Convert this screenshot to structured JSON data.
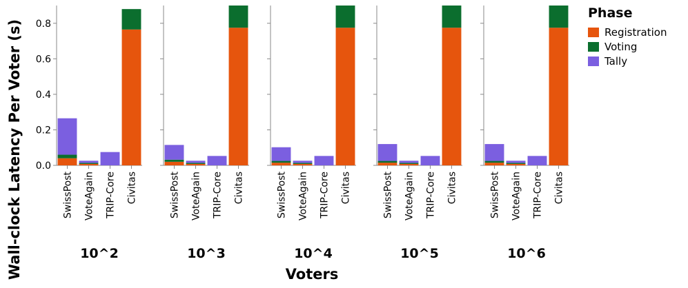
{
  "chart_data": {
    "type": "bar",
    "stacked": true,
    "facets": [
      "10^2",
      "10^3",
      "10^4",
      "10^5",
      "10^6"
    ],
    "categories": [
      "SwissPost",
      "VoteAgain",
      "TRIP-Core",
      "Civitas"
    ],
    "xlabel": "Voters",
    "ylabel": "Wall-clock Latency Per Voter (s)",
    "ylim": [
      0,
      0.9
    ],
    "yticks": [
      0.0,
      0.2,
      0.4,
      0.6,
      0.8
    ],
    "ytick_labels": [
      "0.0",
      "0.2",
      "0.4",
      "0.6",
      "0.8"
    ],
    "legend": {
      "title": "Phase",
      "placement": "top-right",
      "entries": [
        "Registration",
        "Voting",
        "Tally"
      ]
    },
    "colors": {
      "Registration": "#e6550d",
      "Voting": "#0b6e2e",
      "Tally": "#7b5fe0"
    },
    "series": [
      {
        "name": "Registration",
        "values": [
          [
            0.04,
            0.008,
            0.0,
            0.765
          ],
          [
            0.02,
            0.008,
            0.0,
            0.775
          ],
          [
            0.015,
            0.008,
            0.0,
            0.775
          ],
          [
            0.015,
            0.008,
            0.0,
            0.775
          ],
          [
            0.015,
            0.008,
            0.0,
            0.775
          ]
        ]
      },
      {
        "name": "Voting",
        "values": [
          [
            0.02,
            0.006,
            0.0,
            0.115
          ],
          [
            0.012,
            0.006,
            0.0,
            0.125
          ],
          [
            0.01,
            0.006,
            0.0,
            0.125
          ],
          [
            0.01,
            0.006,
            0.0,
            0.125
          ],
          [
            0.01,
            0.006,
            0.0,
            0.125
          ]
        ]
      },
      {
        "name": "Tally",
        "values": [
          [
            0.205,
            0.012,
            0.075,
            0.0
          ],
          [
            0.083,
            0.012,
            0.053,
            0.0
          ],
          [
            0.077,
            0.012,
            0.053,
            0.0
          ],
          [
            0.095,
            0.012,
            0.053,
            0.0
          ],
          [
            0.095,
            0.012,
            0.053,
            0.0
          ]
        ]
      }
    ]
  }
}
